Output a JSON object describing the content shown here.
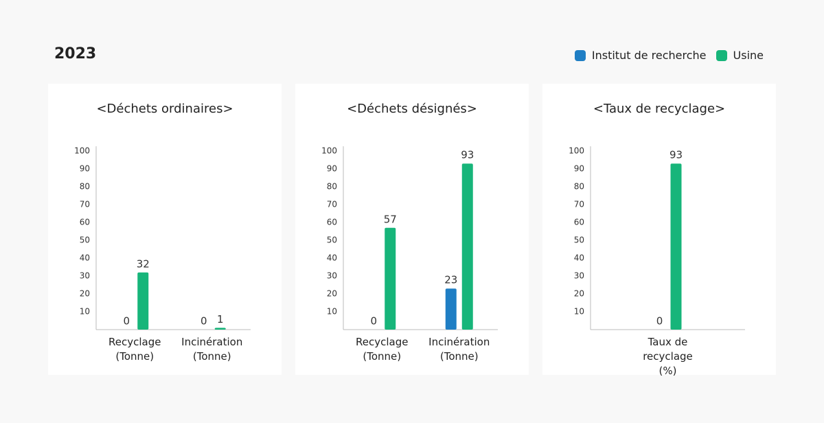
{
  "title": "2023",
  "legend": "top-right",
  "chart_data": [
    {
      "type": "bar",
      "title": "<Déchets ordinaires>",
      "categories": [
        "Recyclage\n(Tonne)",
        "Incinération\n(Tonne)"
      ],
      "series": [
        {
          "name": "Institut de recherche",
          "color": "#1f7ec4",
          "values": [
            0,
            0
          ]
        },
        {
          "name": "Usine",
          "color": "#17b57a",
          "values": [
            32,
            1
          ]
        }
      ],
      "ylim": [
        0,
        100
      ],
      "yticks": [
        10,
        20,
        30,
        40,
        50,
        60,
        70,
        80,
        90,
        100
      ]
    },
    {
      "type": "bar",
      "title": "<Déchets désignés>",
      "categories": [
        "Recyclage\n(Tonne)",
        "Incinération\n(Tonne)"
      ],
      "series": [
        {
          "name": "Institut de recherche",
          "color": "#1f7ec4",
          "values": [
            0,
            23
          ]
        },
        {
          "name": "Usine",
          "color": "#17b57a",
          "values": [
            57,
            93
          ]
        }
      ],
      "ylim": [
        0,
        100
      ],
      "yticks": [
        10,
        20,
        30,
        40,
        50,
        60,
        70,
        80,
        90,
        100
      ]
    },
    {
      "type": "bar",
      "title": "<Taux de recyclage>",
      "categories": [
        "Taux de recyclage\n(%)"
      ],
      "series": [
        {
          "name": "Institut de recherche",
          "color": "#1f7ec4",
          "values": [
            0
          ]
        },
        {
          "name": "Usine",
          "color": "#17b57a",
          "values": [
            93
          ]
        }
      ],
      "ylim": [
        0,
        100
      ],
      "yticks": [
        10,
        20,
        30,
        40,
        50,
        60,
        70,
        80,
        90,
        100
      ]
    }
  ]
}
